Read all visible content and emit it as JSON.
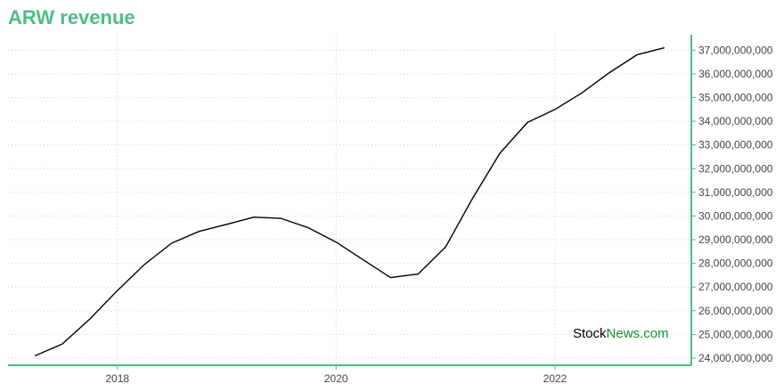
{
  "chart_data": {
    "type": "line",
    "title": "ARW revenue",
    "xlabel": "",
    "ylabel": "",
    "x_ticks": [
      "2018",
      "2020",
      "2022"
    ],
    "y_ticks": [
      "24,000,000,000",
      "25,000,000,000",
      "26,000,000,000",
      "27,000,000,000",
      "28,000,000,000",
      "29,000,000,000",
      "30,000,000,000",
      "31,000,000,000",
      "32,000,000,000",
      "33,000,000,000",
      "34,000,000,000",
      "35,000,000,000",
      "36,000,000,000",
      "37,000,000,000"
    ],
    "ylim": [
      23700000000,
      37650000000
    ],
    "xlim": [
      "2017-01-01",
      "2023-04-01"
    ],
    "grid": true,
    "line_color": "#000000",
    "accent_color": "#4dbd84",
    "series": [
      {
        "x": [
          "2017-04-01",
          "2017-07-01",
          "2017-10-01",
          "2018-01-01",
          "2018-04-01",
          "2018-07-01",
          "2018-10-01",
          "2019-01-01",
          "2019-04-01",
          "2019-07-01",
          "2019-10-01",
          "2020-01-01",
          "2020-04-01",
          "2020-07-01",
          "2020-10-01",
          "2021-01-01",
          "2021-04-01",
          "2021-07-01",
          "2021-10-01",
          "2022-01-01",
          "2022-04-01",
          "2022-07-01",
          "2022-10-01",
          "2023-01-01"
        ],
        "values": [
          24100000000,
          24600000000,
          25650000000,
          26850000000,
          27950000000,
          28850000000,
          29350000000,
          29650000000,
          29950000000,
          29900000000,
          29500000000,
          28900000000,
          28150000000,
          27400000000,
          27550000000,
          28700000000,
          30750000000,
          32650000000,
          33950000000,
          34500000000,
          35200000000,
          36050000000,
          36800000000,
          37100000000
        ]
      }
    ]
  },
  "watermark": {
    "part1": "Stock",
    "part2": "News",
    "part3": ".com"
  }
}
